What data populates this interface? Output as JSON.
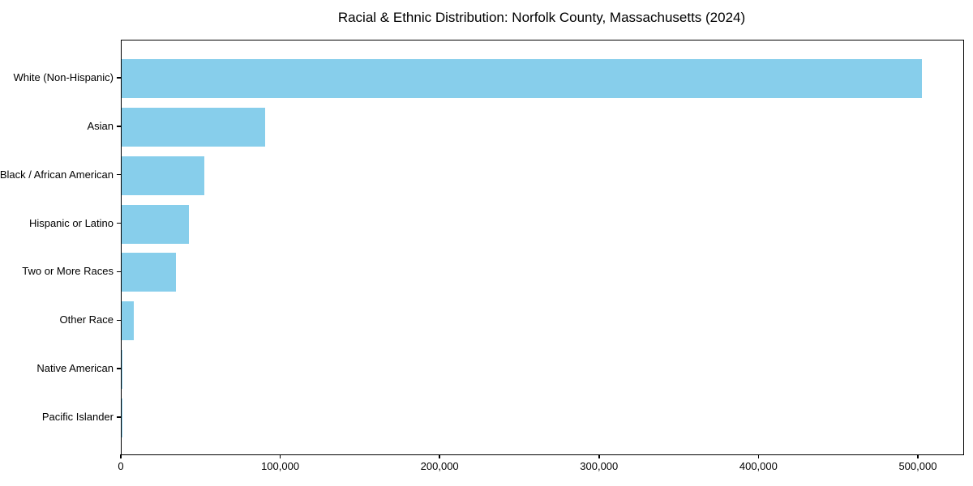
{
  "title": "Racial & Ethnic Distribution: Norfolk County, Massachusetts (2024)",
  "chart_data": {
    "type": "bar",
    "orientation": "horizontal",
    "title": "Racial & Ethnic Distribution: Norfolk County, Massachusetts (2024)",
    "categories": [
      "White (Non-Hispanic)",
      "Asian",
      "Black / African American",
      "Hispanic or Latino",
      "Two or More Races",
      "Other Race",
      "Native American",
      "Pacific Islander"
    ],
    "values": [
      502000,
      90000,
      52000,
      42000,
      34000,
      7500,
      500,
      150
    ],
    "xlabel": "",
    "ylabel": "",
    "xlim": [
      0,
      528000
    ],
    "x_ticks": {
      "values": [
        0,
        100000,
        200000,
        300000,
        400000,
        500000
      ],
      "labels": [
        "0",
        "100,000",
        "200,000",
        "300,000",
        "400,000",
        "500,000"
      ]
    },
    "grid": false,
    "legend": "none",
    "bar_color": "#87CEEB",
    "text_color": "#000000",
    "spine_color": "#000000",
    "background_color": "#ffffff"
  }
}
